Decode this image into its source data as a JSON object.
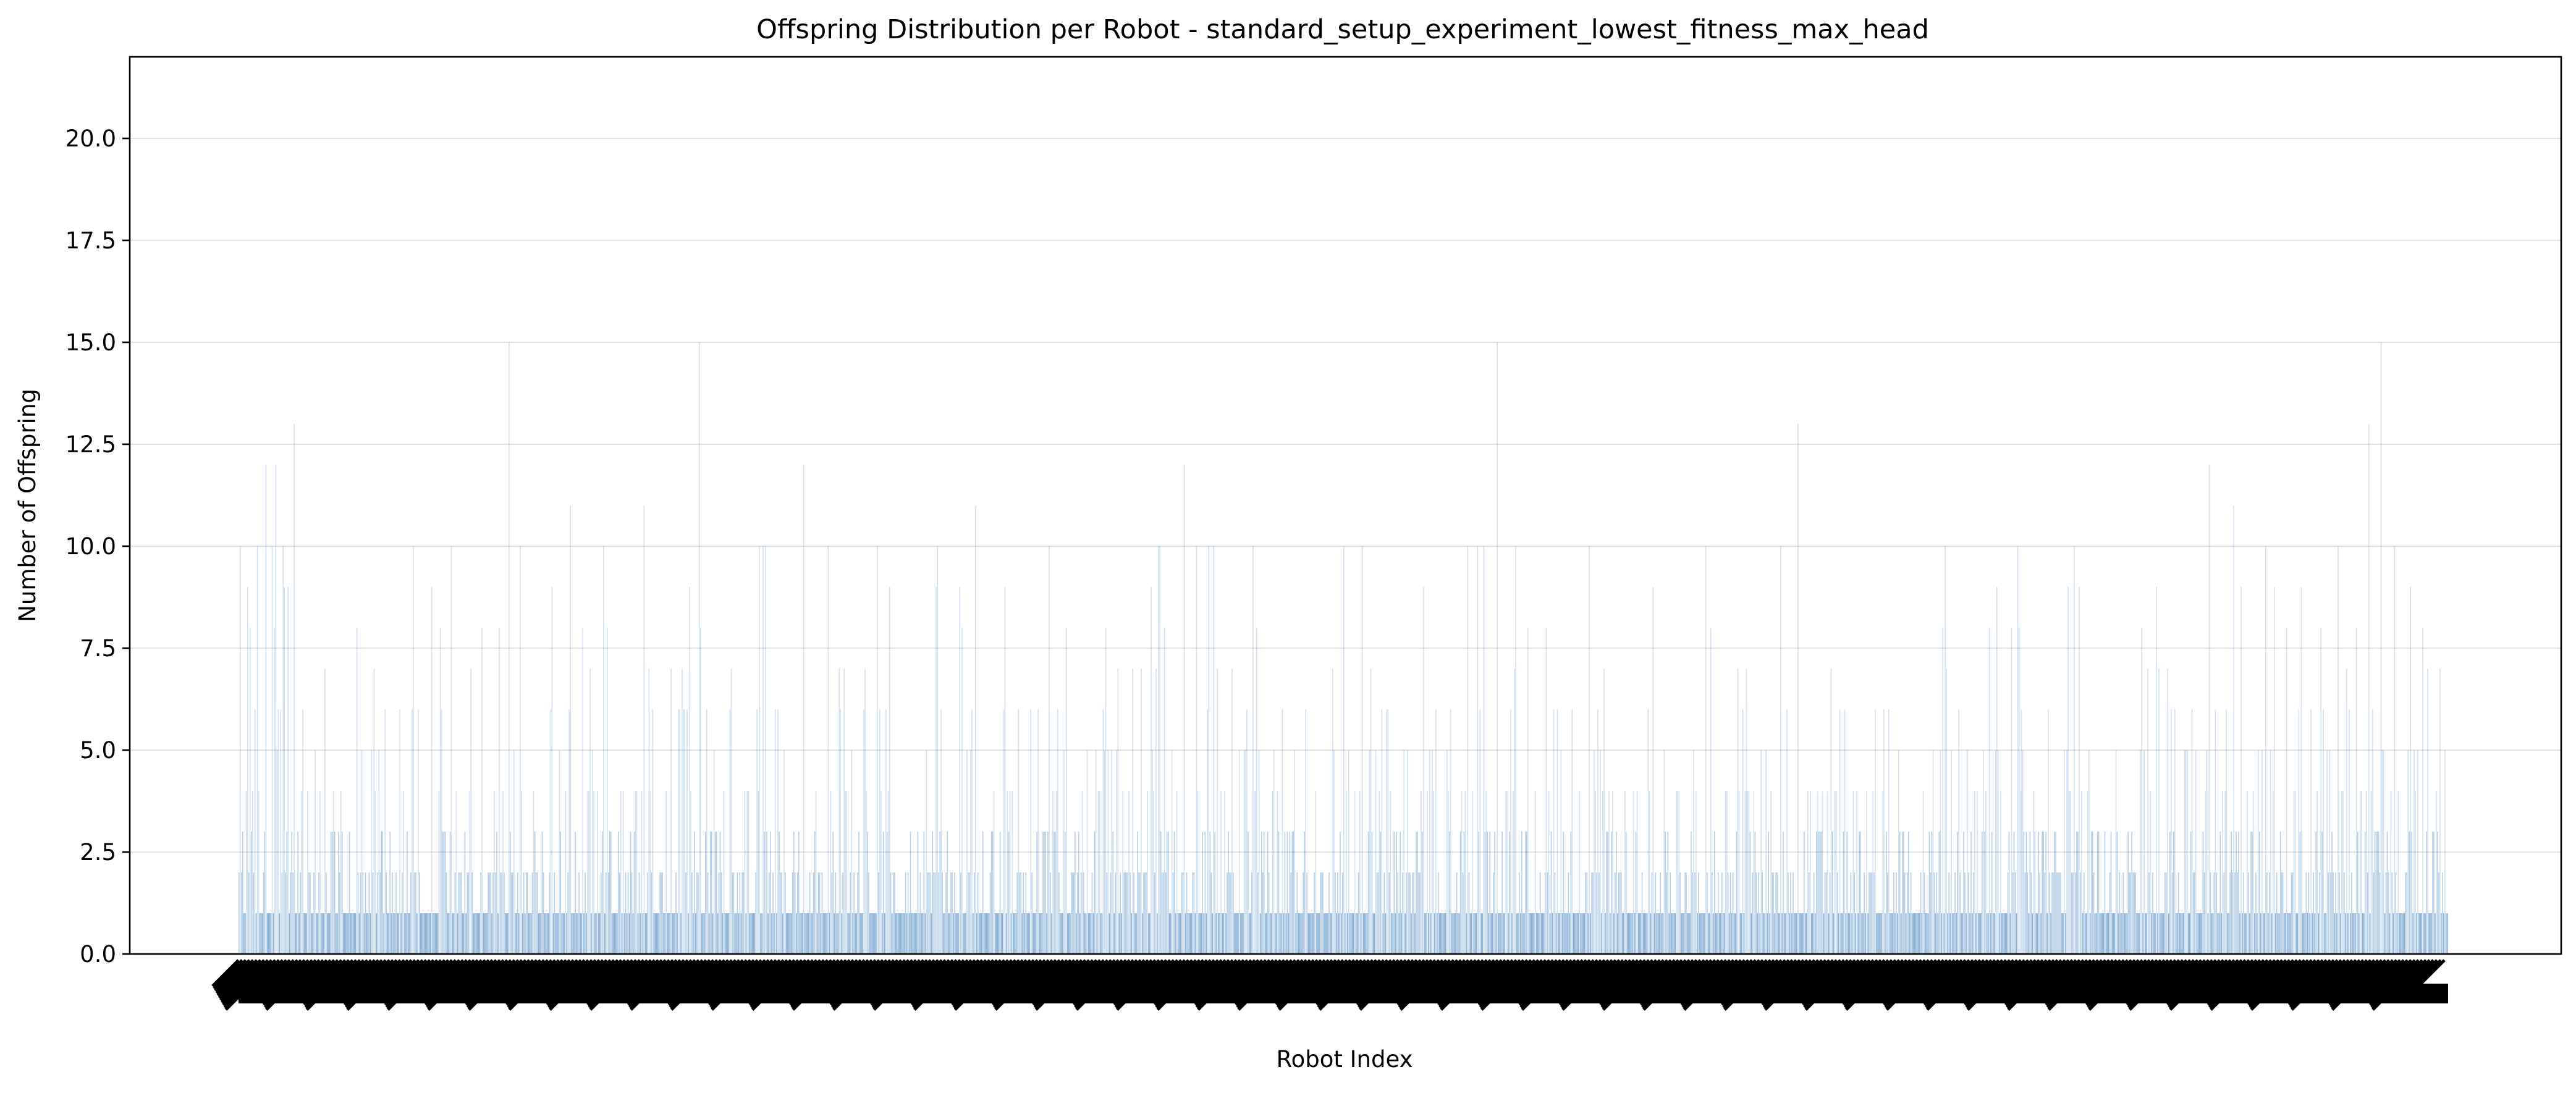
{
  "chart_data": {
    "type": "bar",
    "title": "Offspring Distribution per Robot - standard_setup_experiment_lowest_fitness_max_head",
    "xlabel": "Robot Index",
    "ylabel": "Number of Offspring",
    "ylim": [
      0,
      22
    ],
    "yticks": [
      "0.0",
      "2.5",
      "5.0",
      "7.5",
      "10.0",
      "12.5",
      "15.0",
      "17.5",
      "20.0"
    ],
    "grid": "y",
    "bar_color": "#4a86bf",
    "n_bars": 1800,
    "x_tick_labels_legible": false,
    "values_note": "approximate - individual bars are too dense to read; values are estimated per bar",
    "peaks": [
      {
        "x": 22,
        "y": 12
      },
      {
        "x": 30,
        "y": 12
      },
      {
        "x": 45,
        "y": 13
      },
      {
        "x": 15,
        "y": 10
      },
      {
        "x": 40,
        "y": 9
      },
      {
        "x": 220,
        "y": 15
      },
      {
        "x": 270,
        "y": 11
      },
      {
        "x": 330,
        "y": 11
      },
      {
        "x": 375,
        "y": 15
      },
      {
        "x": 460,
        "y": 12
      },
      {
        "x": 480,
        "y": 10
      },
      {
        "x": 520,
        "y": 10
      },
      {
        "x": 600,
        "y": 11
      },
      {
        "x": 660,
        "y": 10
      },
      {
        "x": 750,
        "y": 10
      },
      {
        "x": 770,
        "y": 12
      },
      {
        "x": 790,
        "y": 10
      },
      {
        "x": 900,
        "y": 10
      },
      {
        "x": 915,
        "y": 10
      },
      {
        "x": 1025,
        "y": 15
      },
      {
        "x": 1040,
        "y": 10
      },
      {
        "x": 1270,
        "y": 13
      },
      {
        "x": 1390,
        "y": 10
      },
      {
        "x": 1495,
        "y": 10
      },
      {
        "x": 1605,
        "y": 12
      },
      {
        "x": 1625,
        "y": 11
      },
      {
        "x": 1735,
        "y": 13
      },
      {
        "x": 1745,
        "y": 15
      }
    ]
  }
}
